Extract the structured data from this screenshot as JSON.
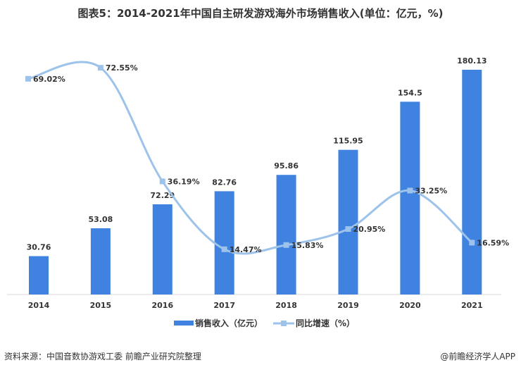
{
  "chart_data": {
    "type": "bar+line",
    "title": "图表5：2014-2021年中国自主研发游戏海外市场销售收入(单位：亿元，%)",
    "categories": [
      "2014",
      "2015",
      "2016",
      "2017",
      "2018",
      "2019",
      "2020",
      "2021"
    ],
    "series": [
      {
        "name": "销售收入（亿元）",
        "type": "bar",
        "color": "#3f82e0",
        "values": [
          30.76,
          53.08,
          72.29,
          82.76,
          95.86,
          115.95,
          154.5,
          180.13
        ],
        "labels": [
          "30.76",
          "53.08",
          "72.29",
          "82.76",
          "95.86",
          "115.95",
          "154.5",
          "180.13"
        ]
      },
      {
        "name": "同比增速（%）",
        "type": "line",
        "color": "#9dc3ea",
        "values": [
          69.02,
          72.55,
          36.19,
          14.47,
          15.83,
          20.95,
          33.25,
          16.59
        ],
        "labels": [
          "69.02%",
          "72.55%",
          "36.19%",
          "14.47%",
          "15.83%",
          "20.95%",
          "33.25%",
          "16.59%"
        ]
      }
    ],
    "legend_position": "bottom",
    "grid": false,
    "smooth_line": true
  },
  "footer": {
    "source": "资料来源：中国音数协游戏工委 前瞻产业研究院整理",
    "credit": "@前瞻经济学人APP"
  }
}
